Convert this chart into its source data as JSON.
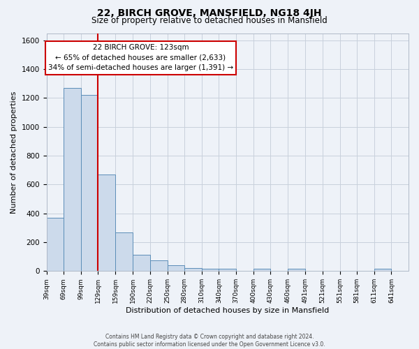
{
  "title": "22, BIRCH GROVE, MANSFIELD, NG18 4JH",
  "subtitle": "Size of property relative to detached houses in Mansfield",
  "xlabel": "Distribution of detached houses by size in Mansfield",
  "ylabel": "Number of detached properties",
  "footer_line1": "Contains HM Land Registry data © Crown copyright and database right 2024.",
  "footer_line2": "Contains public sector information licensed under the Open Government Licence v3.0.",
  "bar_labels": [
    "39sqm",
    "69sqm",
    "99sqm",
    "129sqm",
    "159sqm",
    "190sqm",
    "220sqm",
    "250sqm",
    "280sqm",
    "310sqm",
    "340sqm",
    "370sqm",
    "400sqm",
    "430sqm",
    "460sqm",
    "491sqm",
    "521sqm",
    "551sqm",
    "581sqm",
    "611sqm",
    "641sqm"
  ],
  "bar_values": [
    370,
    1270,
    1220,
    670,
    270,
    115,
    75,
    38,
    20,
    15,
    15,
    0,
    15,
    0,
    15,
    0,
    0,
    0,
    0,
    15,
    0
  ],
  "bar_color": "#ccdaeb",
  "bar_edge_color": "#5b8db8",
  "ylim": [
    0,
    1650
  ],
  "yticks": [
    0,
    200,
    400,
    600,
    800,
    1000,
    1200,
    1400,
    1600
  ],
  "marker_label": "22 BIRCH GROVE: 123sqm",
  "annotation_line1": "← 65% of detached houses are smaller (2,633)",
  "annotation_line2": "34% of semi-detached houses are larger (1,391) →",
  "red_line_color": "#cc0000",
  "annotation_box_color": "#ffffff",
  "annotation_box_edge": "#cc0000",
  "grid_color": "#c8d0dc",
  "bg_color": "#eef2f8",
  "bin_edges": [
    39,
    69,
    99,
    129,
    159,
    190,
    220,
    250,
    280,
    310,
    340,
    370,
    400,
    430,
    460,
    491,
    521,
    551,
    581,
    611,
    641,
    671
  ],
  "red_line_x": 129
}
